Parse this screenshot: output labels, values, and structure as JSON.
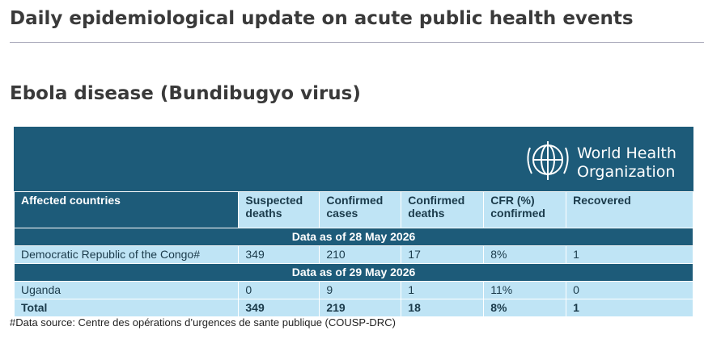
{
  "header": {
    "title": "Daily epidemiological update on acute public health events"
  },
  "section": {
    "title": "Ebola disease (Bundibugyo virus)"
  },
  "logo": {
    "line1": "World Health",
    "line2": "Organization"
  },
  "table": {
    "columns": [
      [
        "Affected countries"
      ],
      [
        "Suspected",
        "deaths"
      ],
      [
        "Confirmed",
        "cases"
      ],
      [
        "Confirmed",
        "deaths"
      ],
      [
        "CFR (%)",
        "confirmed"
      ],
      [
        "Recovered"
      ]
    ],
    "groups": [
      {
        "label": "Data as of 28 May 2026",
        "rows": [
          [
            "Democratic Republic of the Congo#",
            349,
            210,
            17,
            "8%",
            1
          ]
        ]
      },
      {
        "label": "Data as of 29 May 2026",
        "rows": [
          [
            "Uganda",
            0,
            9,
            1,
            "11%",
            0
          ]
        ]
      }
    ],
    "total": [
      "Total",
      349,
      219,
      18,
      "8%",
      1
    ]
  },
  "footnote": "#Data source: Centre des opérations d’urgences de sante publique (COUSP-DRC)"
}
